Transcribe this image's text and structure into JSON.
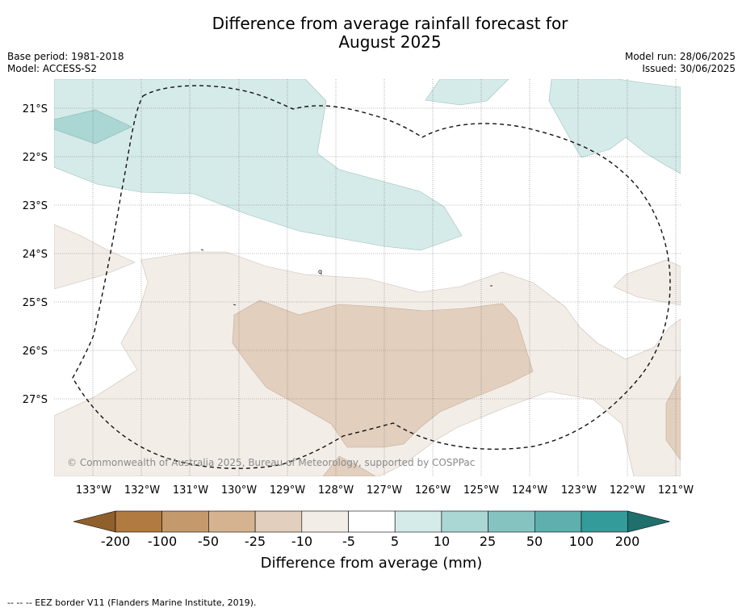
{
  "title_line1": "Difference from average rainfall forecast for",
  "title_line2": "August 2025",
  "base_period": "Base period: 1981-2018",
  "model": "Model: ACCESS-S2",
  "model_run": "Model run: 28/06/2025",
  "issued": "Issued: 30/06/2025",
  "copyright": "© Commonwealth of Australia 2025, Bureau of Meteorology, supported by COSPPac",
  "footer": "--  --  -- EEZ border V11 (Flanders Marine Institute, 2019).",
  "lat_ticks": [
    "21°S",
    "22°S",
    "23°S",
    "24°S",
    "25°S",
    "26°S",
    "27°S"
  ],
  "lon_ticks": [
    "133°W",
    "132°W",
    "131°W",
    "130°W",
    "129°W",
    "128°W",
    "127°W",
    "126°W",
    "125°W",
    "124°W",
    "123°W",
    "122°W",
    "121°W"
  ],
  "colorbar": {
    "label": "Difference from average (mm)",
    "ticks": [
      "-200",
      "-100",
      "-50",
      "-25",
      "-10",
      "-5",
      "5",
      "10",
      "25",
      "50",
      "100",
      "200"
    ],
    "colors": [
      "#8f5f2c",
      "#b07a40",
      "#c49a6c",
      "#d5b391",
      "#e2cfbd",
      "#f3ede8",
      "#ffffff",
      "#d5ebe9",
      "#aad6d4",
      "#85c3c1",
      "#5eafad",
      "#339b99",
      "#1f6f6d"
    ]
  },
  "marker": "q"
}
